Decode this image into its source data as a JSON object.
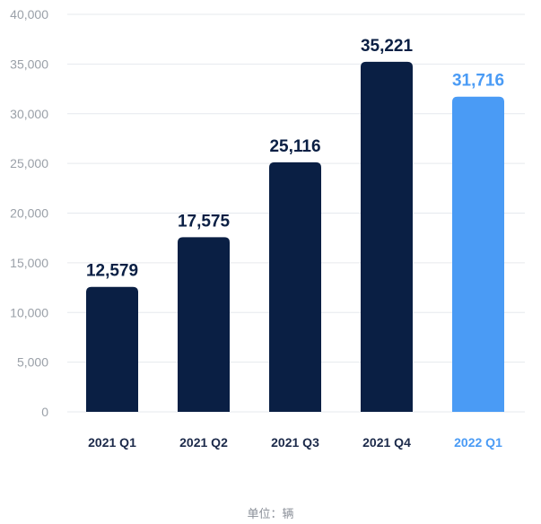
{
  "chart_data": {
    "type": "bar",
    "categories": [
      "2021 Q1",
      "2021 Q2",
      "2021 Q3",
      "2021 Q4",
      "2022 Q1"
    ],
    "values": [
      12579,
      17575,
      25116,
      35221,
      31716
    ],
    "value_labels": [
      "12,579",
      "17,575",
      "25,116",
      "35,221",
      "31,716"
    ],
    "ylim": [
      0,
      40000
    ],
    "y_ticks": [
      0,
      5000,
      10000,
      15000,
      20000,
      25000,
      30000,
      35000,
      40000
    ],
    "y_tick_labels": [
      "0",
      "5,000",
      "10,000",
      "15,000",
      "20,000",
      "25,000",
      "30,000",
      "35,000",
      "40,000"
    ],
    "grid": true,
    "unit_note": "单位：辆",
    "colors": {
      "bar": "#0a1f44",
      "highlight": "#4a9bf5",
      "highlight_index": 4,
      "grid": "#e6e9ee",
      "axis_text": "#9aa0a8",
      "category_text": "#1c2a4a"
    }
  }
}
